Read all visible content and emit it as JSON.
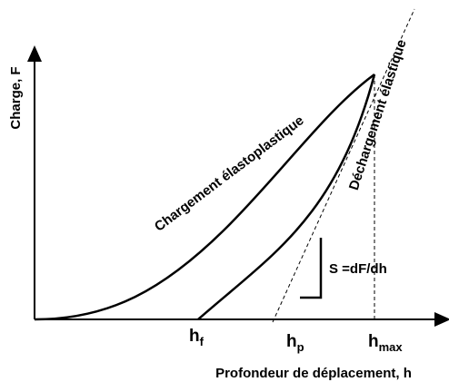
{
  "y_axis_label": "Charge, F",
  "x_axis_label": "Profondeur de déplacement, h",
  "loading_label": "Chargement élastoplastique",
  "unloading_label": "Déchargement élastique",
  "stiffness_label": "S =dF/dh",
  "points": [
    {
      "base": "h",
      "sub": "f"
    },
    {
      "base": "h",
      "sub": "p"
    },
    {
      "base": "h",
      "sub": "max"
    }
  ]
}
